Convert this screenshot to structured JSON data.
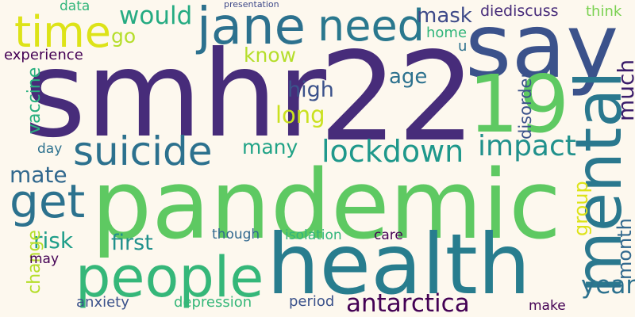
{
  "background": "#fdf8ee",
  "words": [
    {
      "text": "smhr",
      "color": "#472c7a"
    },
    {
      "text": "22",
      "color": "#472c7a"
    },
    {
      "text": "pandemic",
      "color": "#5ec962"
    },
    {
      "text": "health",
      "color": "#287d8e"
    },
    {
      "text": "say",
      "color": "#3b528b"
    },
    {
      "text": "19",
      "color": "#5ec962"
    },
    {
      "text": "mental",
      "color": "#2a788e"
    },
    {
      "text": "people",
      "color": "#35b779"
    },
    {
      "text": "jane",
      "color": "#2c718e"
    },
    {
      "text": "time",
      "color": "#dde318"
    },
    {
      "text": "need",
      "color": "#2a788e"
    },
    {
      "text": "suicide",
      "color": "#2c718e"
    },
    {
      "text": "get",
      "color": "#2c728e"
    },
    {
      "text": "lockdown",
      "color": "#1f988b"
    },
    {
      "text": "impact",
      "color": "#21918c"
    },
    {
      "text": "would",
      "color": "#25ab82"
    },
    {
      "text": "antarctica",
      "color": "#440154"
    },
    {
      "text": "year",
      "color": "#2c718e"
    },
    {
      "text": "month",
      "color": "#31688e"
    },
    {
      "text": "much",
      "color": "#3b1c6b"
    },
    {
      "text": "group",
      "color": "#dde318"
    },
    {
      "text": "disorder",
      "color": "#3b528b"
    },
    {
      "text": "first",
      "color": "#21918c"
    },
    {
      "text": "risk",
      "color": "#1f9e89"
    },
    {
      "text": "mate",
      "color": "#31688e"
    },
    {
      "text": "vaccine",
      "color": "#2ab07f"
    },
    {
      "text": "change",
      "color": "#b5de2b"
    },
    {
      "text": "many",
      "color": "#20a386"
    },
    {
      "text": "high",
      "color": "#3b528b"
    },
    {
      "text": "long",
      "color": "#cae11f"
    },
    {
      "text": "age",
      "color": "#2c718e"
    },
    {
      "text": "know",
      "color": "#b5de2b"
    },
    {
      "text": "go",
      "color": "#b5de2b"
    },
    {
      "text": "mask",
      "color": "#3e4a89"
    },
    {
      "text": "diediscuss",
      "color": "#472c7a"
    },
    {
      "text": "think",
      "color": "#7ad151"
    },
    {
      "text": "home",
      "color": "#31b57b"
    },
    {
      "text": "u",
      "color": "#2c718e"
    },
    {
      "text": "experience",
      "color": "#440154"
    },
    {
      "text": "data",
      "color": "#31b57b"
    },
    {
      "text": "presentation",
      "color": "#3e4989"
    },
    {
      "text": "day",
      "color": "#2c718e"
    },
    {
      "text": "though",
      "color": "#31688e"
    },
    {
      "text": "isolation",
      "color": "#31b57b"
    },
    {
      "text": "care",
      "color": "#440154"
    },
    {
      "text": "may",
      "color": "#440154"
    },
    {
      "text": "anxiety",
      "color": "#3b528b"
    },
    {
      "text": "depression",
      "color": "#35b779"
    },
    {
      "text": "period",
      "color": "#3b528b"
    },
    {
      "text": "make",
      "color": "#440154"
    }
  ]
}
